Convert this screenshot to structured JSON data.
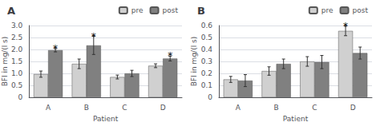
{
  "chart_data": [
    {
      "type": "bar",
      "title": "A",
      "xlabel": "Patient",
      "ylabel": "BFI in mg/(l s)",
      "categories": [
        "A",
        "B",
        "C",
        "D"
      ],
      "series": [
        {
          "name": "pre",
          "color": "#d0d0d0",
          "values": [
            0.97,
            1.4,
            0.85,
            1.32
          ],
          "errors": [
            0.13,
            0.2,
            0.08,
            0.08
          ]
        },
        {
          "name": "post",
          "color": "#808080",
          "values": [
            1.97,
            2.17,
            1.0,
            1.62
          ],
          "errors": [
            0.07,
            0.38,
            0.13,
            0.1
          ]
        }
      ],
      "annotations": [
        {
          "text": "*",
          "series": "post",
          "category": "A"
        },
        {
          "text": "*",
          "series": "post",
          "category": "B"
        },
        {
          "text": "*",
          "series": "post",
          "category": "D"
        }
      ],
      "ylim": [
        0,
        3.0
      ],
      "yticks": [
        0,
        0.5,
        {
          "value": 1.0,
          "label": "1.0"
        },
        1.5,
        {
          "value": 2.0,
          "label": "2.0"
        },
        2.5,
        {
          "value": 3.0,
          "label": "3.0"
        }
      ],
      "grid": true,
      "legend": "upper right"
    },
    {
      "type": "bar",
      "title": "B",
      "xlabel": "Patient",
      "ylabel": "BFI in mg/(l s)",
      "categories": [
        "A",
        "B",
        "C",
        "D"
      ],
      "series": [
        {
          "name": "pre",
          "color": "#d0d0d0",
          "values": [
            0.15,
            0.22,
            0.3,
            0.555
          ],
          "errors": [
            0.025,
            0.035,
            0.04,
            0.04
          ]
        },
        {
          "name": "post",
          "color": "#808080",
          "values": [
            0.14,
            0.28,
            0.295,
            0.37
          ],
          "errors": [
            0.05,
            0.04,
            0.055,
            0.05
          ]
        }
      ],
      "annotations": [
        {
          "text": "*",
          "series": "pre",
          "category": "D"
        }
      ],
      "ylim": [
        0,
        0.6
      ],
      "yticks": [
        0.0,
        0.1,
        0.2,
        0.3,
        0.4,
        0.5,
        0.6
      ],
      "grid": true,
      "legend": "upper right"
    }
  ]
}
